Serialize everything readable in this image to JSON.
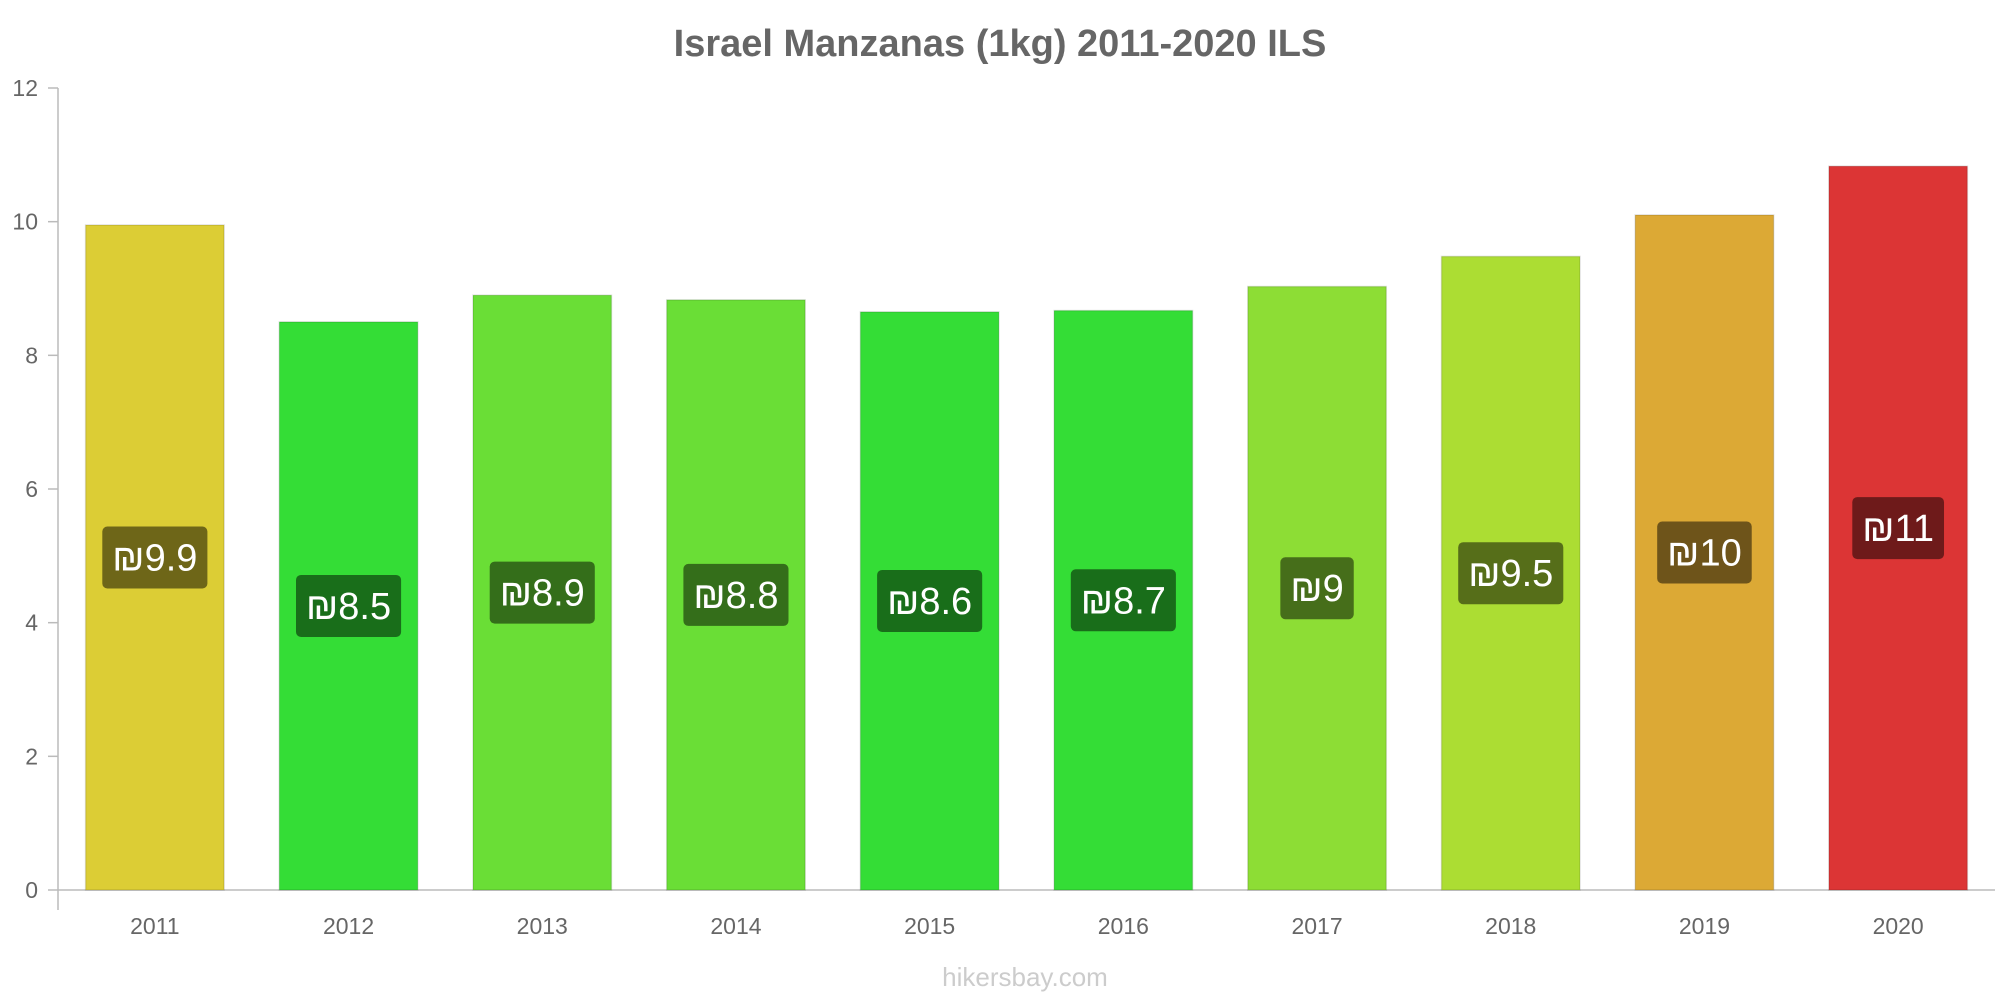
{
  "chart_data": {
    "type": "bar",
    "title": "Israel Manzanas (1kg) 2011-2020 ILS",
    "xlabel": "",
    "ylabel": "",
    "ylim": [
      0,
      12
    ],
    "yticks": [
      0,
      2,
      4,
      6,
      8,
      10,
      12
    ],
    "categories": [
      "2011",
      "2012",
      "2013",
      "2014",
      "2015",
      "2016",
      "2017",
      "2018",
      "2019",
      "2020"
    ],
    "values": [
      9.95,
      8.5,
      8.9,
      8.83,
      8.65,
      8.67,
      9.03,
      9.48,
      10.1,
      10.83
    ],
    "value_labels": [
      "₪9.9",
      "₪8.5",
      "₪8.9",
      "₪8.8",
      "₪8.6",
      "₪8.7",
      "₪9",
      "₪9.5",
      "₪10",
      "₪11"
    ],
    "bar_colors": [
      "#dccd35",
      "#34dd36",
      "#6ade36",
      "#6ade36",
      "#34dd36",
      "#34dd36",
      "#8ddd35",
      "#acdd33",
      "#dca935",
      "#dc3535"
    ],
    "label_colors": [
      "#6e6618",
      "#196e1a",
      "#346e1a",
      "#346e1a",
      "#196e1a",
      "#196e1a",
      "#466e1a",
      "#566e19",
      "#6e541a",
      "#6e1a1a"
    ],
    "grid": false,
    "legend": "none"
  },
  "watermark": "hikersbay.com"
}
